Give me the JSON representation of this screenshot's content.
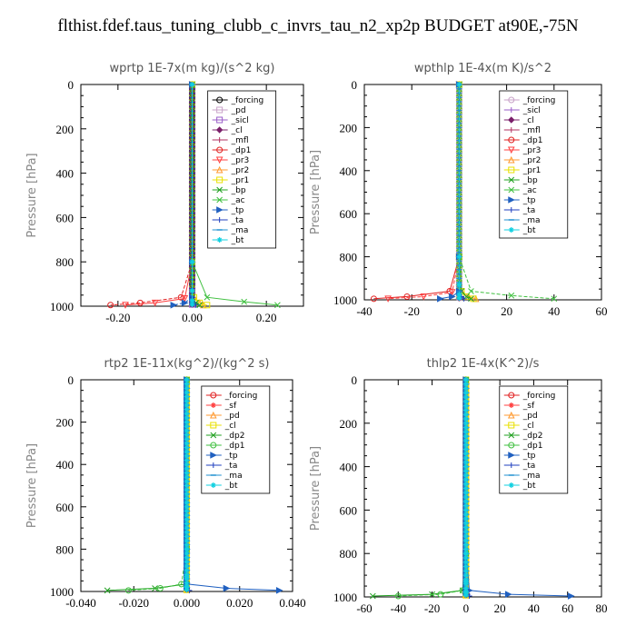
{
  "page": {
    "title": "flthist.fdef.taus_tuning_clubb_c_invrs_tau_n2_xp2p  BUDGET at90E,-75N"
  },
  "chart_data": [
    {
      "type": "line",
      "title": "wprtp   1E-7x(m kg)/(s^2 kg)",
      "ylabel": "Pressure [hPa]",
      "xlabel": "",
      "xlim": [
        -0.3,
        0.3
      ],
      "ylim": [
        1000,
        0
      ],
      "xticks": [
        -0.2,
        0.0,
        0.2
      ],
      "xtick_labels": [
        "-0.20",
        "0.00",
        "0.20"
      ],
      "yticks": [
        0,
        200,
        400,
        600,
        800,
        1000
      ],
      "legend_position": "top-right",
      "series": [
        {
          "name": "_forcing",
          "color": "#000000",
          "marker": "o",
          "x": [
            0,
            0,
            0,
            0,
            0
          ],
          "y": [
            0,
            800,
            930,
            975,
            992
          ]
        },
        {
          "name": "_pd",
          "color": "#c8a2c8",
          "marker": "s",
          "x": [
            0,
            0,
            0,
            0,
            0
          ],
          "y": [
            0,
            800,
            930,
            975,
            992
          ]
        },
        {
          "name": "_sicl",
          "color": "#9a5cc9",
          "marker": "s",
          "x": [
            0,
            0,
            0,
            0,
            0
          ],
          "y": [
            0,
            800,
            930,
            975,
            992
          ]
        },
        {
          "name": "_cl",
          "color": "#7a1f6a",
          "marker": "d",
          "x": [
            0,
            0,
            0,
            0,
            0
          ],
          "y": [
            0,
            800,
            930,
            975,
            992
          ]
        },
        {
          "name": "_mfl",
          "color": "#b03060",
          "marker": "+",
          "x": [
            0,
            0,
            0,
            0,
            0
          ],
          "y": [
            0,
            800,
            930,
            975,
            992
          ]
        },
        {
          "name": "_dp1",
          "color": "#e02020",
          "marker": "o",
          "x": [
            0,
            0,
            -0.03,
            -0.14,
            -0.22
          ],
          "y": [
            0,
            800,
            960,
            985,
            995
          ]
        },
        {
          "name": "_pr3",
          "color": "#ff4040",
          "marker": "v",
          "x": [
            0,
            0,
            -0.02,
            -0.1,
            -0.18
          ],
          "y": [
            0,
            800,
            965,
            985,
            995
          ]
        },
        {
          "name": "_pr2",
          "color": "#ff9a30",
          "marker": "^",
          "x": [
            0,
            0,
            0.005,
            0.02,
            0.03
          ],
          "y": [
            0,
            800,
            960,
            985,
            995
          ]
        },
        {
          "name": "_pr1",
          "color": "#e8e000",
          "marker": "s",
          "x": [
            0,
            0,
            0.005,
            0.02,
            0.04
          ],
          "y": [
            0,
            800,
            960,
            985,
            995
          ]
        },
        {
          "name": "_bp",
          "color": "#20a020",
          "marker": "x",
          "x": [
            0,
            0,
            0.0,
            0.01,
            0.02
          ],
          "y": [
            0,
            800,
            960,
            985,
            995
          ]
        },
        {
          "name": "_ac",
          "color": "#40c040",
          "marker": "x",
          "x": [
            0,
            0,
            0.04,
            0.14,
            0.23
          ],
          "y": [
            0,
            800,
            960,
            980,
            995
          ]
        },
        {
          "name": "_tp",
          "color": "#2060c0",
          "marker": ">",
          "x": [
            0,
            0,
            0.0,
            -0.02,
            -0.05
          ],
          "y": [
            0,
            800,
            960,
            985,
            995
          ]
        },
        {
          "name": "_ta",
          "color": "#1f3fbf",
          "marker": "+",
          "x": [
            0,
            0,
            0.0,
            0.0,
            0.01
          ],
          "y": [
            0,
            800,
            960,
            985,
            995
          ]
        },
        {
          "name": "_ma",
          "color": "#2090d0",
          "marker": "-",
          "x": [
            0,
            0,
            0,
            0,
            0
          ],
          "y": [
            0,
            800,
            930,
            975,
            992
          ]
        },
        {
          "name": "_bt",
          "color": "#10d0e0",
          "marker": "*",
          "x": [
            0,
            0,
            0,
            0,
            0
          ],
          "y": [
            0,
            800,
            930,
            975,
            992
          ]
        }
      ]
    },
    {
      "type": "line",
      "title": "wpthlp   1E-4x(m K)/s^2",
      "ylabel": "Pressure [hPa]",
      "xlabel": "",
      "xlim": [
        -40,
        60
      ],
      "ylim": [
        1000,
        0
      ],
      "xticks": [
        -40,
        -20,
        0,
        20,
        40,
        60
      ],
      "xtick_labels": [
        "-40",
        "-20",
        "0",
        "20",
        "40",
        "60"
      ],
      "yticks": [
        0,
        200,
        400,
        600,
        800,
        1000
      ],
      "legend_position": "top-right",
      "series": [
        {
          "name": "_forcing",
          "color": "#c8a2c8",
          "marker": "o",
          "x": [
            0,
            0,
            0,
            0,
            0
          ],
          "y": [
            0,
            800,
            930,
            975,
            992
          ]
        },
        {
          "name": "_sicl",
          "color": "#9a5cc9",
          "marker": "+",
          "x": [
            0,
            0,
            0,
            0,
            0
          ],
          "y": [
            0,
            800,
            930,
            975,
            992
          ]
        },
        {
          "name": "_cl",
          "color": "#7a1f6a",
          "marker": "d",
          "x": [
            0,
            0,
            0,
            0,
            0
          ],
          "y": [
            0,
            800,
            930,
            975,
            992
          ]
        },
        {
          "name": "_mfl",
          "color": "#b03060",
          "marker": "+",
          "x": [
            0,
            0,
            0,
            0,
            0
          ],
          "y": [
            0,
            800,
            930,
            975,
            992
          ]
        },
        {
          "name": "_dp1",
          "color": "#e02020",
          "marker": "o",
          "x": [
            0,
            0,
            -4,
            -22,
            -36
          ],
          "y": [
            0,
            800,
            960,
            985,
            995
          ]
        },
        {
          "name": "_pr3",
          "color": "#ff4040",
          "marker": "v",
          "x": [
            0,
            0,
            -3,
            -15,
            -30
          ],
          "y": [
            0,
            800,
            965,
            985,
            995
          ]
        },
        {
          "name": "_pr2",
          "color": "#ff9a30",
          "marker": "^",
          "x": [
            0,
            0,
            1,
            4,
            7
          ],
          "y": [
            0,
            800,
            960,
            985,
            995
          ]
        },
        {
          "name": "_pr1",
          "color": "#e8e000",
          "marker": "s",
          "x": [
            0,
            0,
            1,
            3,
            6
          ],
          "y": [
            0,
            800,
            960,
            985,
            995
          ]
        },
        {
          "name": "_bp",
          "color": "#20a020",
          "marker": "x",
          "x": [
            0,
            0,
            1,
            3,
            5
          ],
          "y": [
            0,
            800,
            960,
            985,
            995
          ]
        },
        {
          "name": "_ac",
          "color": "#40c040",
          "marker": "x",
          "x": [
            0,
            0,
            5,
            22,
            40
          ],
          "y": [
            0,
            800,
            960,
            980,
            995
          ]
        },
        {
          "name": "_tp",
          "color": "#2060c0",
          "marker": ">",
          "x": [
            0,
            0,
            0,
            -3,
            -8
          ],
          "y": [
            0,
            800,
            960,
            985,
            995
          ]
        },
        {
          "name": "_ta",
          "color": "#1f3fbf",
          "marker": "+",
          "x": [
            0,
            0,
            0,
            1,
            2
          ],
          "y": [
            0,
            800,
            960,
            985,
            995
          ]
        },
        {
          "name": "_ma",
          "color": "#2090d0",
          "marker": "-",
          "x": [
            0,
            0,
            0,
            0,
            0
          ],
          "y": [
            0,
            800,
            930,
            975,
            992
          ]
        },
        {
          "name": "_bt",
          "color": "#10d0e0",
          "marker": "*",
          "x": [
            0,
            0,
            0,
            0,
            0
          ],
          "y": [
            0,
            800,
            930,
            975,
            992
          ]
        }
      ]
    },
    {
      "type": "line",
      "title": "rtp2   1E-11x(kg^2)/(kg^2 s)",
      "ylabel": "Pressure [hPa]",
      "xlabel": "",
      "xlim": [
        -0.04,
        0.04
      ],
      "ylim": [
        1000,
        0
      ],
      "xticks": [
        -0.04,
        -0.02,
        0.0,
        0.02,
        0.04
      ],
      "xtick_labels": [
        "-0.040",
        "-0.020",
        "0.000",
        "0.020",
        "0.040"
      ],
      "yticks": [
        0,
        200,
        400,
        600,
        800,
        1000
      ],
      "legend_position": "top-right",
      "series": [
        {
          "name": "_forcing",
          "color": "#e02020",
          "marker": "o",
          "x": [
            0,
            0,
            0,
            0,
            0
          ],
          "y": [
            0,
            800,
            930,
            975,
            992
          ]
        },
        {
          "name": "_sf",
          "color": "#ff4040",
          "marker": "*",
          "x": [
            0,
            0,
            0,
            0,
            0
          ],
          "y": [
            0,
            800,
            930,
            975,
            992
          ]
        },
        {
          "name": "_pd",
          "color": "#ff9a30",
          "marker": "^",
          "x": [
            0,
            0,
            0,
            0,
            0
          ],
          "y": [
            0,
            800,
            930,
            975,
            992
          ]
        },
        {
          "name": "_cl",
          "color": "#e8e000",
          "marker": "s",
          "x": [
            0,
            0,
            0,
            0,
            0
          ],
          "y": [
            0,
            800,
            930,
            975,
            992
          ]
        },
        {
          "name": "_dp2",
          "color": "#20a020",
          "marker": "x",
          "x": [
            0,
            0,
            0.0,
            -0.012,
            -0.03
          ],
          "y": [
            0,
            800,
            965,
            985,
            995
          ]
        },
        {
          "name": "_dp1",
          "color": "#40c040",
          "marker": "o",
          "x": [
            0,
            0,
            -0.002,
            -0.01,
            -0.022
          ],
          "y": [
            0,
            800,
            965,
            985,
            995
          ]
        },
        {
          "name": "_tp",
          "color": "#2060c0",
          "marker": ">",
          "x": [
            0,
            0,
            0.0,
            0.015,
            0.035
          ],
          "y": [
            0,
            800,
            965,
            985,
            995
          ]
        },
        {
          "name": "_ta",
          "color": "#1f3fbf",
          "marker": "+",
          "x": [
            0,
            0,
            0.0,
            0.0,
            0.001
          ],
          "y": [
            0,
            800,
            965,
            985,
            995
          ]
        },
        {
          "name": "_ma",
          "color": "#2090d0",
          "marker": "-",
          "x": [
            0,
            0,
            0,
            0,
            0
          ],
          "y": [
            0,
            800,
            930,
            975,
            992
          ]
        },
        {
          "name": "_bt",
          "color": "#10d0e0",
          "marker": "*",
          "x": [
            0,
            0,
            0,
            0,
            0
          ],
          "y": [
            0,
            800,
            930,
            975,
            992
          ]
        }
      ]
    },
    {
      "type": "line",
      "title": "thlp2   1E-4x(K^2)/s",
      "ylabel": "Pressure [hPa]",
      "xlabel": "",
      "xlim": [
        -60,
        80
      ],
      "ylim": [
        1000,
        0
      ],
      "xticks": [
        -60,
        -40,
        -20,
        0,
        20,
        40,
        60,
        80
      ],
      "xtick_labels": [
        "-60",
        "-40",
        "-20",
        "0",
        "20",
        "40",
        "60",
        "80"
      ],
      "yticks": [
        0,
        200,
        400,
        600,
        800,
        1000
      ],
      "legend_position": "top-right",
      "series": [
        {
          "name": "_forcing",
          "color": "#e02020",
          "marker": "o",
          "x": [
            0,
            0,
            0,
            0,
            0
          ],
          "y": [
            0,
            800,
            930,
            975,
            992
          ]
        },
        {
          "name": "_sf",
          "color": "#ff4040",
          "marker": "*",
          "x": [
            0,
            0,
            0,
            0,
            0
          ],
          "y": [
            0,
            800,
            930,
            975,
            992
          ]
        },
        {
          "name": "_pd",
          "color": "#ff9a30",
          "marker": "^",
          "x": [
            0,
            0,
            0,
            0,
            0
          ],
          "y": [
            0,
            800,
            930,
            975,
            992
          ]
        },
        {
          "name": "_cl",
          "color": "#e8e000",
          "marker": "s",
          "x": [
            0,
            0,
            0,
            0,
            0
          ],
          "y": [
            0,
            800,
            930,
            975,
            992
          ]
        },
        {
          "name": "_dp2",
          "color": "#20a020",
          "marker": "x",
          "x": [
            0,
            0,
            -2,
            -20,
            -55
          ],
          "y": [
            0,
            800,
            970,
            988,
            996
          ]
        },
        {
          "name": "_dp1",
          "color": "#40c040",
          "marker": "o",
          "x": [
            0,
            0,
            -2,
            -15,
            -40
          ],
          "y": [
            0,
            800,
            970,
            988,
            996
          ]
        },
        {
          "name": "_tp",
          "color": "#2060c0",
          "marker": ">",
          "x": [
            0,
            0,
            2,
            25,
            62
          ],
          "y": [
            0,
            800,
            970,
            988,
            996
          ]
        },
        {
          "name": "_ta",
          "color": "#1f3fbf",
          "marker": "+",
          "x": [
            0,
            0,
            0,
            1,
            2
          ],
          "y": [
            0,
            800,
            970,
            988,
            996
          ]
        },
        {
          "name": "_ma",
          "color": "#2090d0",
          "marker": "-",
          "x": [
            0,
            0,
            0,
            0,
            0
          ],
          "y": [
            0,
            800,
            930,
            975,
            992
          ]
        },
        {
          "name": "_bt",
          "color": "#10d0e0",
          "marker": "*",
          "x": [
            0,
            0,
            0,
            0,
            0
          ],
          "y": [
            0,
            800,
            930,
            975,
            992
          ]
        }
      ]
    }
  ]
}
